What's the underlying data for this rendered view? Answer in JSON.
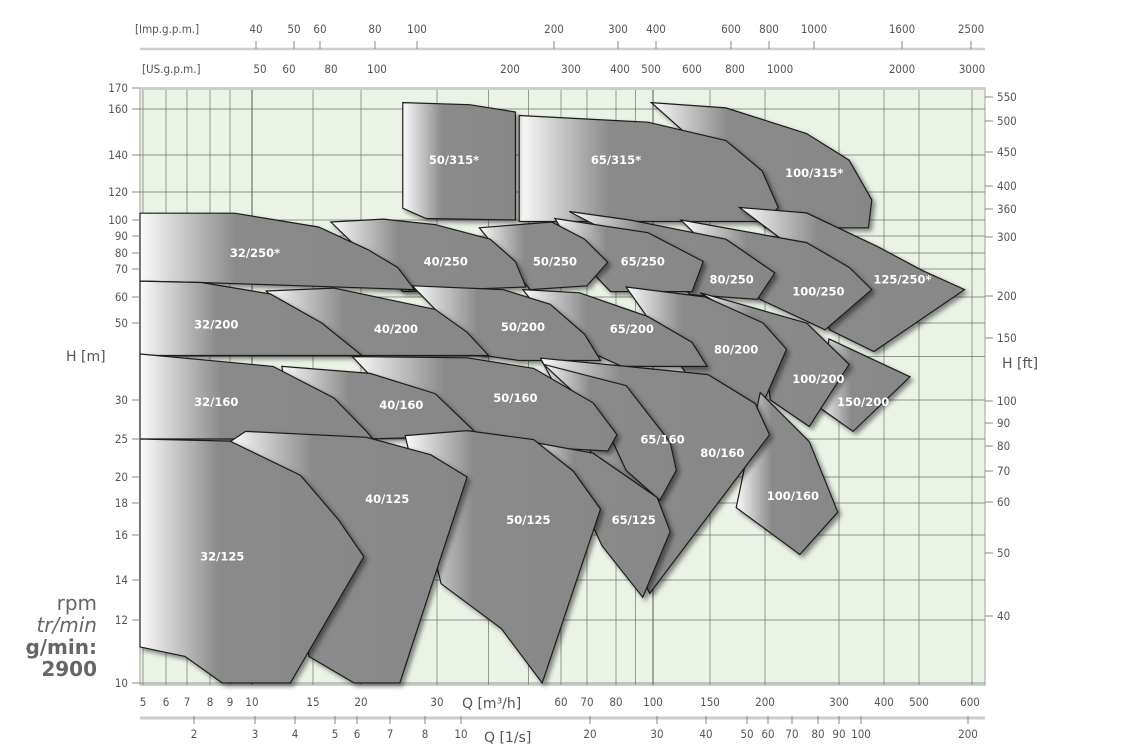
{
  "chart_data": {
    "type": "area",
    "title": "",
    "colors": {
      "plot_bg": "#ebf3e7",
      "grid": "#6f736e",
      "pump_fill": "#8a8a8a",
      "pump_edge": "#1e1e1e",
      "label": "#ffffff",
      "axis_text": "#555555"
    },
    "grid": true,
    "x_axis": {
      "label": "Q [m³/h]",
      "scale": "log",
      "range": [
        4.9,
        625
      ],
      "ticks": [
        "5",
        "6",
        "7",
        "8",
        "9",
        "10",
        "15",
        "20",
        "30",
        "60",
        "70",
        "80",
        "100",
        "150",
        "200",
        "300",
        "400",
        "500",
        "600"
      ]
    },
    "x_axis_ls": {
      "label": "Q [1/s]",
      "ticks": [
        "2",
        "3",
        "4",
        "5",
        "6",
        "7",
        "8",
        "10",
        "20",
        "30",
        "40",
        "50",
        "60",
        "70",
        "80",
        "90",
        "100",
        "200"
      ]
    },
    "top_axis_imp": {
      "label": "[Imp.g.p.m.]",
      "ticks": [
        "40",
        "50",
        "60",
        "80",
        "100",
        "200",
        "300",
        "400",
        "600",
        "800",
        "1000",
        "1600",
        "2500"
      ]
    },
    "top_axis_us": {
      "label": "[US.g.p.m.]",
      "ticks": [
        "50",
        "60",
        "80",
        "100",
        "200",
        "300",
        "400",
        "500",
        "600",
        "800",
        "1000",
        "2000",
        "3000"
      ]
    },
    "y_axis": {
      "label": "H [m]",
      "scale": "log",
      "range": [
        10,
        170
      ],
      "ticks": [
        "170",
        "160",
        "140",
        "120",
        "100",
        "90",
        "80",
        "70",
        "60",
        "50",
        "30",
        "25",
        "20",
        "18",
        "16",
        "14",
        "12",
        "10"
      ]
    },
    "y_axis_ft": {
      "label": "H [ft]",
      "ticks": [
        "550",
        "500",
        "450",
        "400",
        "360",
        "300",
        "200",
        "150",
        "100",
        "90",
        "80",
        "70",
        "60",
        "50",
        "40"
      ]
    },
    "speed": {
      "line1": "rpm",
      "line2": "tr/min",
      "line3": "g/min:",
      "value": "2900"
    },
    "pumps": [
      {
        "name": "100/315*",
        "label_at": [
          262,
          130
        ],
        "points": [
          [
            99,
            163
          ],
          [
            163,
            160.5
          ],
          [
            251,
            149
          ],
          [
            320,
            137
          ],
          [
            370,
            114
          ],
          [
            362,
            95
          ],
          [
            200,
            95
          ],
          [
            150,
            140
          ]
        ]
      },
      {
        "name": "65/315*",
        "label_at": [
          80,
          137
        ],
        "points": [
          [
            47.5,
            157
          ],
          [
            97,
            154
          ],
          [
            163,
            146
          ],
          [
            197,
            131
          ],
          [
            215,
            108.5
          ],
          [
            200,
            99
          ],
          [
            47.5,
            99
          ]
        ]
      },
      {
        "name": "50/315*",
        "label_at": [
          33,
          137
        ],
        "points": [
          [
            25,
            163
          ],
          [
            36,
            162
          ],
          [
            46.5,
            158.6
          ],
          [
            46.5,
            100
          ],
          [
            28.3,
            101
          ],
          [
            25,
            108
          ]
        ]
      },
      {
        "name": "125/250*",
        "label_at": [
          450,
          66
        ],
        "points": [
          [
            175,
            108.5
          ],
          [
            251,
            104.7
          ],
          [
            385,
            83.5
          ],
          [
            505,
            69.5
          ],
          [
            585,
            62.5
          ],
          [
            375,
            41.4
          ],
          [
            285,
            47.8
          ],
          [
            219,
            88
          ]
        ]
      },
      {
        "name": "100/250",
        "label_at": [
          268,
          61.8
        ],
        "points": [
          [
            122,
            100
          ],
          [
            251,
            86
          ],
          [
            320,
            71
          ],
          [
            370,
            62.5
          ],
          [
            278,
            47.8
          ],
          [
            195,
            59
          ]
        ]
      },
      {
        "name": "80/250",
        "label_at": [
          168,
          66
        ],
        "points": [
          [
            63,
            105.7
          ],
          [
            87,
            100
          ],
          [
            163,
            88
          ],
          [
            211,
            68.5
          ],
          [
            192,
            59
          ],
          [
            130,
            60.8
          ],
          [
            107,
            75.5
          ]
        ]
      },
      {
        "name": "65/250",
        "label_at": [
          94,
          74.5
        ],
        "points": [
          [
            58,
            101
          ],
          [
            97,
            92
          ],
          [
            143,
            74.5
          ],
          [
            132,
            61.8
          ],
          [
            78,
            61.8
          ],
          [
            67,
            76
          ]
        ]
      },
      {
        "name": "50/250",
        "label_at": [
          58,
          74.5
        ],
        "points": [
          [
            38,
            95
          ],
          [
            57,
            98.7
          ],
          [
            69,
            88
          ],
          [
            77,
            74
          ],
          [
            70,
            63.8
          ],
          [
            50.5,
            62.5
          ]
        ]
      },
      {
        "name": "40/250",
        "label_at": [
          31.5,
          74.5
        ],
        "points": [
          [
            16.7,
            98.7
          ],
          [
            22.5,
            100.6
          ],
          [
            29.7,
            97
          ],
          [
            40.4,
            88
          ],
          [
            46.5,
            74.5
          ],
          [
            49.3,
            63.4
          ],
          [
            25,
            61.8
          ]
        ]
      },
      {
        "name": "32/250*",
        "label_at": [
          10.2,
          80
        ],
        "points": [
          [
            4.9,
            104.5
          ],
          [
            9.2,
            104.5
          ],
          [
            15.5,
            95.5
          ],
          [
            20.7,
            82
          ],
          [
            24.3,
            71
          ],
          [
            26.6,
            62.5
          ],
          [
            7.6,
            65
          ],
          [
            4.9,
            65.5
          ]
        ]
      },
      {
        "name": "150/200",
        "label_at": [
          350,
          29.7
        ],
        "points": [
          [
            284,
            45
          ],
          [
            472,
            35
          ],
          [
            328,
            25.9
          ],
          [
            269,
            29
          ]
        ]
      },
      {
        "name": "100/200",
        "label_at": [
          268,
          34.5
        ],
        "points": [
          [
            140,
            61.4
          ],
          [
            251,
            50
          ],
          [
            320,
            38
          ],
          [
            255,
            26.5
          ],
          [
            206,
            30
          ],
          [
            195,
            48
          ]
        ]
      },
      {
        "name": "80/200",
        "label_at": [
          172,
          42
        ],
        "points": [
          [
            85,
            63.4
          ],
          [
            145,
            60
          ],
          [
            198,
            50
          ],
          [
            225,
            42
          ],
          [
            195,
            28.7
          ],
          [
            140,
            31.2
          ],
          [
            107,
            45
          ]
        ]
      },
      {
        "name": "65/200",
        "label_at": [
          88,
          48
        ],
        "points": [
          [
            48.5,
            62.5
          ],
          [
            67,
            61.4
          ],
          [
            97,
            52.3
          ],
          [
            132,
            44
          ],
          [
            147,
            37.5
          ],
          [
            83,
            37.5
          ],
          [
            60,
            45
          ]
        ]
      },
      {
        "name": "50/200",
        "label_at": [
          48.5,
          48.7
        ],
        "points": [
          [
            26.3,
            63.8
          ],
          [
            43.4,
            62.5
          ],
          [
            56.5,
            57
          ],
          [
            69,
            46.4
          ],
          [
            74.5,
            39
          ],
          [
            47.5,
            39
          ],
          [
            38,
            40.5
          ]
        ]
      },
      {
        "name": "40/200",
        "label_at": [
          24.1,
          48
        ],
        "points": [
          [
            11,
            62
          ],
          [
            17,
            63
          ],
          [
            29.7,
            55
          ],
          [
            35.5,
            47
          ],
          [
            40,
            40.3
          ],
          [
            20,
            40.3
          ],
          [
            15,
            45
          ]
        ]
      },
      {
        "name": "32/200",
        "label_at": [
          8.3,
          49.5
        ],
        "points": [
          [
            4.9,
            65.5
          ],
          [
            7.6,
            65
          ],
          [
            11.3,
            61
          ],
          [
            15.8,
            50
          ],
          [
            20.1,
            40.3
          ],
          [
            4.9,
            40.3
          ]
        ]
      },
      {
        "name": "100/160",
        "label_at": [
          233,
          18.5
        ],
        "points": [
          [
            195,
            31.5
          ],
          [
            255,
            24.6
          ],
          [
            298,
            17.4
          ],
          [
            242,
            15.1
          ],
          [
            172,
            17.7
          ]
        ]
      },
      {
        "name": "80/160",
        "label_at": [
          160,
          23
        ],
        "points": [
          [
            53.5,
            39.6
          ],
          [
            85,
            37.5
          ],
          [
            148,
            35.5
          ],
          [
            190,
            29.5
          ],
          [
            205,
            25.5
          ],
          [
            98,
            13.3
          ],
          [
            91,
            14.5
          ],
          [
            75,
            20.5
          ]
        ]
      },
      {
        "name": "65/160",
        "label_at": [
          107,
          24.9
        ],
        "points": [
          [
            54.5,
            38
          ],
          [
            85,
            33
          ],
          [
            113,
            24.5
          ],
          [
            118,
            20.8
          ],
          [
            105,
            18.2
          ],
          [
            85,
            20.8
          ],
          [
            75,
            27.5
          ]
        ]
      },
      {
        "name": "50/160",
        "label_at": [
          46.5,
          30.4
        ],
        "points": [
          [
            19,
            40
          ],
          [
            35.5,
            39.7
          ],
          [
            51.5,
            37
          ],
          [
            72,
            29.6
          ],
          [
            80.5,
            25.5
          ],
          [
            77,
            23.3
          ],
          [
            37,
            24.3
          ],
          [
            29,
            24.9
          ]
        ]
      },
      {
        "name": "40/160",
        "label_at": [
          24.8,
          29.3
        ],
        "points": [
          [
            12.2,
            37.5
          ],
          [
            21,
            35.8
          ],
          [
            29.7,
            31.3
          ],
          [
            37,
            25.9
          ],
          [
            37,
            25.4
          ],
          [
            21,
            25
          ],
          [
            13,
            25
          ]
        ]
      },
      {
        "name": "32/160",
        "label_at": [
          8.3,
          29.7
        ],
        "points": [
          [
            4.9,
            40.7
          ],
          [
            11.5,
            37.5
          ],
          [
            17,
            30.4
          ],
          [
            20.6,
            25.9
          ],
          [
            21.3,
            25
          ],
          [
            4.9,
            25
          ]
        ]
      },
      {
        "name": "65/125",
        "label_at": [
          89,
          16.9
        ],
        "points": [
          [
            48.5,
            24.8
          ],
          [
            72,
            23
          ],
          [
            103,
            18.4
          ],
          [
            113,
            16.2
          ],
          [
            94,
            13.1
          ],
          [
            75,
            15.5
          ],
          [
            67,
            18.4
          ]
        ]
      },
      {
        "name": "50/125",
        "label_at": [
          50,
          16.9
        ],
        "points": [
          [
            25.3,
            25.4
          ],
          [
            35.5,
            26
          ],
          [
            51.5,
            24.9
          ],
          [
            64.5,
            20.7
          ],
          [
            74.5,
            17.6
          ],
          [
            54,
            10
          ],
          [
            43,
            11.7
          ],
          [
            30.7,
            13.8
          ],
          [
            27.5,
            18.2
          ]
        ]
      },
      {
        "name": "40/125",
        "label_at": [
          23,
          18.3
        ],
        "points": [
          [
            9,
            24.6
          ],
          [
            9.7,
            25.9
          ],
          [
            20.6,
            25.2
          ],
          [
            29,
            22.8
          ],
          [
            35.5,
            20
          ],
          [
            24.6,
            10
          ],
          [
            19.2,
            10
          ],
          [
            14.6,
            10.8
          ],
          [
            13.8,
            14.9
          ]
        ]
      },
      {
        "name": "32/125",
        "label_at": [
          8.6,
          15
        ],
        "points": [
          [
            4.9,
            25
          ],
          [
            9,
            24.7
          ],
          [
            13.8,
            20.2
          ],
          [
            17.5,
            16.9
          ],
          [
            20.3,
            15
          ],
          [
            12.9,
            10
          ],
          [
            8.6,
            10
          ],
          [
            6.9,
            10.8
          ],
          [
            4.9,
            11.1
          ]
        ]
      }
    ]
  }
}
